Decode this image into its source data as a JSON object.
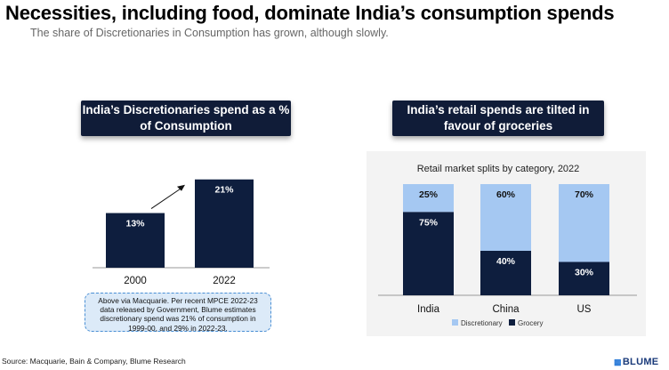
{
  "title": "Necessities, including food, dominate India’s consumption spends",
  "subtitle": "The share of Discretionaries in Consumption has grown, although slowly.",
  "left_panel": {
    "title": "India’s Discretionaries spend as a % of Consumption",
    "note": "Above via Macquarie. Per recent MPCE 2022-23 data released by Government, Blume estimates discretionary spend was 21% of consumption in 1999-00, and 29% in 2022-23."
  },
  "right_panel": {
    "title": "India’s retail spends are tilted in favour of groceries"
  },
  "source": "Source: Macquarie, Bain & Company, Blume Research",
  "logo": "BLUME",
  "colors": {
    "navy": "#0e1e3e",
    "light_blue": "#a5c8f2",
    "header_navy": "#101c38"
  },
  "chart_data": [
    {
      "type": "bar",
      "title": "",
      "categories": [
        "2000",
        "2022"
      ],
      "values": [
        13,
        21
      ],
      "data_labels": [
        "13%",
        "21%"
      ],
      "ylim": [
        0,
        22
      ],
      "grid": false
    },
    {
      "type": "bar",
      "stacked": true,
      "title": "Retail market splits by category, 2022",
      "categories": [
        "India",
        "China",
        "US"
      ],
      "series": [
        {
          "name": "Grocery",
          "values": [
            75,
            40,
            30
          ],
          "labels": [
            "75%",
            "40%",
            "30%"
          ],
          "color": "#0e1e3e"
        },
        {
          "name": "Discretionary",
          "values": [
            25,
            60,
            70
          ],
          "labels": [
            "25%",
            "60%",
            "70%"
          ],
          "color": "#a5c8f2"
        }
      ],
      "ylim": [
        0,
        100
      ],
      "legend": "bottom",
      "grid": false
    }
  ]
}
